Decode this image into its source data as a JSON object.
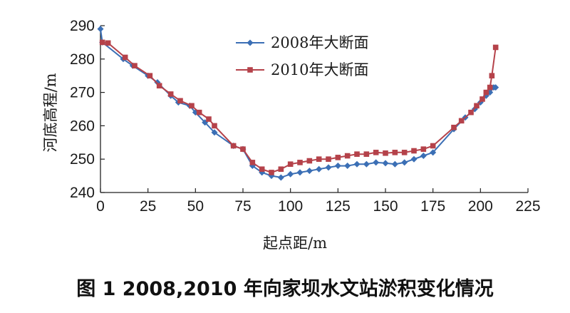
{
  "caption": "图 1   2008,2010 年向家坝水文站淤积变化情况",
  "chart_data": {
    "type": "line",
    "xlabel": "起点距/m",
    "ylabel": "河底高程/m",
    "xlim": [
      0,
      225
    ],
    "ylim": [
      240,
      290
    ],
    "xticks": [
      0,
      25,
      50,
      75,
      100,
      125,
      150,
      175,
      200,
      225
    ],
    "yticks": [
      240,
      250,
      260,
      270,
      280,
      290
    ],
    "legend_position": "top-center",
    "series": [
      {
        "name": "2008年大断面",
        "color": "#3b6fb5",
        "marker": "diamond",
        "points": [
          [
            0,
            289
          ],
          [
            1,
            285
          ],
          [
            12,
            280
          ],
          [
            17,
            278
          ],
          [
            25,
            275
          ],
          [
            30,
            273
          ],
          [
            37,
            269
          ],
          [
            41,
            267
          ],
          [
            47,
            266
          ],
          [
            50,
            264
          ],
          [
            55,
            261
          ],
          [
            60,
            258
          ],
          [
            70,
            254
          ],
          [
            75,
            253
          ],
          [
            80,
            248
          ],
          [
            85,
            246
          ],
          [
            90,
            245
          ],
          [
            95,
            244.5
          ],
          [
            100,
            245.5
          ],
          [
            105,
            246
          ],
          [
            110,
            246.5
          ],
          [
            115,
            247
          ],
          [
            120,
            247.5
          ],
          [
            125,
            248
          ],
          [
            130,
            248
          ],
          [
            135,
            248.5
          ],
          [
            140,
            248.5
          ],
          [
            145,
            249
          ],
          [
            150,
            248.8
          ],
          [
            155,
            248.5
          ],
          [
            160,
            249
          ],
          [
            165,
            250
          ],
          [
            170,
            251
          ],
          [
            175,
            252
          ],
          [
            186,
            259
          ],
          [
            192,
            262.5
          ],
          [
            197,
            265
          ],
          [
            200,
            267
          ],
          [
            203,
            269
          ],
          [
            205,
            270
          ],
          [
            207,
            271.5
          ],
          [
            208,
            271.5
          ]
        ]
      },
      {
        "name": "2010年大断面",
        "color": "#b5424a",
        "marker": "square",
        "points": [
          [
            1,
            285
          ],
          [
            4,
            284.8
          ],
          [
            13,
            280.5
          ],
          [
            18,
            278
          ],
          [
            26,
            275
          ],
          [
            31,
            272
          ],
          [
            37,
            269.5
          ],
          [
            42,
            267.5
          ],
          [
            48,
            266
          ],
          [
            52,
            264
          ],
          [
            57,
            262
          ],
          [
            60,
            260
          ],
          [
            70,
            254
          ],
          [
            75,
            253
          ],
          [
            80,
            249
          ],
          [
            85,
            247
          ],
          [
            90,
            246
          ],
          [
            95,
            247
          ],
          [
            100,
            248.5
          ],
          [
            105,
            249
          ],
          [
            110,
            249.5
          ],
          [
            115,
            250
          ],
          [
            120,
            250
          ],
          [
            125,
            250.5
          ],
          [
            130,
            251
          ],
          [
            135,
            251.5
          ],
          [
            140,
            251.5
          ],
          [
            145,
            252
          ],
          [
            150,
            251.8
          ],
          [
            155,
            252
          ],
          [
            160,
            252
          ],
          [
            165,
            252.5
          ],
          [
            170,
            253
          ],
          [
            175,
            254
          ],
          [
            186,
            259.5
          ],
          [
            190,
            261.5
          ],
          [
            195,
            264
          ],
          [
            198,
            266
          ],
          [
            201,
            268
          ],
          [
            203,
            270
          ],
          [
            205,
            271.5
          ],
          [
            206,
            275
          ],
          [
            208,
            283.5
          ]
        ]
      }
    ]
  }
}
